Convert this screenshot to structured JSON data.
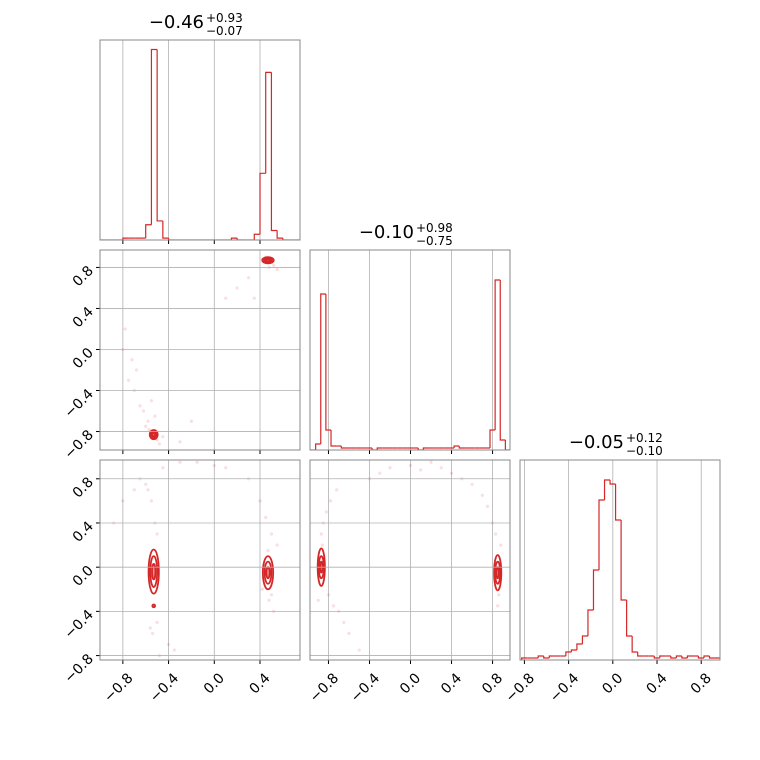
{
  "chart_data": {
    "type": "corner",
    "color": "#d62728",
    "grid": true,
    "params": [
      {
        "title": {
          "value": -0.46,
          "label": "−0.46"
        },
        "err_plus": {
          "value": 0.93,
          "label": "+0.93"
        },
        "err_minus": {
          "value": 0.07,
          "label": "−0.07"
        },
        "lim": [
          -1.0,
          0.75
        ],
        "ticks": [
          {
            "value": -0.8,
            "label": "−0.8"
          },
          {
            "value": -0.4,
            "label": "−0.4"
          },
          {
            "value": 0,
            "label": "0.0"
          },
          0.4
        ],
        "bins": [
          -1.0,
          -0.95,
          -0.9,
          -0.85,
          -0.8,
          -0.75,
          -0.7,
          -0.65,
          -0.6,
          -0.55,
          -0.5,
          -0.45,
          -0.4,
          -0.35,
          -0.3,
          -0.25,
          -0.2,
          -0.15,
          -0.1,
          -0.05,
          0,
          0.05,
          0.1,
          0.15,
          0.2,
          0.25,
          0.3,
          0.35,
          0.4,
          0.45,
          0.5,
          0.55,
          0.6,
          0.65,
          0.7,
          0.75
        ],
        "counts": [
          0,
          0,
          0,
          0,
          1,
          1,
          1,
          1,
          8,
          100,
          10,
          1,
          0,
          0,
          0,
          0,
          0,
          0,
          0,
          0,
          0,
          0,
          0,
          1,
          0,
          0,
          0,
          3,
          35,
          88,
          5,
          1,
          0,
          0,
          0
        ],
        "hist_ylim": [
          0,
          105
        ]
      },
      {
        "title": {
          "value": -0.1,
          "label": "−0.10"
        },
        "err_plus": {
          "value": 0.98,
          "label": "+0.98"
        },
        "err_minus": {
          "value": 0.75,
          "label": "−0.75"
        },
        "lim": [
          -0.98,
          0.97
        ],
        "ticks": [
          {
            "value": -0.8,
            "label": "−0.8"
          },
          {
            "value": -0.4,
            "label": "−0.4"
          },
          {
            "value": 0,
            "label": "0.0"
          },
          0.4,
          0.8
        ],
        "bins": [
          -0.975,
          -0.925,
          -0.875,
          -0.825,
          -0.775,
          -0.725,
          -0.675,
          -0.625,
          -0.575,
          -0.525,
          -0.475,
          -0.425,
          -0.375,
          -0.325,
          -0.275,
          -0.225,
          -0.175,
          -0.125,
          -0.075,
          -0.025,
          0.025,
          0.075,
          0.125,
          0.175,
          0.225,
          0.275,
          0.325,
          0.375,
          0.425,
          0.475,
          0.525,
          0.575,
          0.625,
          0.675,
          0.725,
          0.775,
          0.825,
          0.875,
          0.925,
          0.975
        ],
        "counts": [
          0,
          3,
          78,
          10,
          2,
          2,
          1,
          1,
          1,
          1,
          1,
          1,
          0,
          1,
          1,
          1,
          1,
          1,
          1,
          1,
          1,
          0,
          1,
          1,
          1,
          1,
          1,
          1,
          2,
          1,
          1,
          1,
          1,
          1,
          1,
          10,
          85,
          5,
          0
        ],
        "hist_ylim": [
          0,
          100
        ]
      },
      {
        "title": {
          "value": -0.05,
          "label": "−0.05"
        },
        "err_plus": {
          "value": 0.12,
          "label": "+0.12"
        },
        "err_minus": {
          "value": 0.1,
          "label": "−0.10"
        },
        "lim": [
          -0.84,
          0.97
        ],
        "ticks": [
          {
            "value": -0.8,
            "label": "−0.8"
          },
          {
            "value": -0.4,
            "label": "−0.4"
          },
          {
            "value": 0,
            "label": "0.0"
          },
          0.4,
          0.8
        ],
        "bins": [
          -0.825,
          -0.775,
          -0.725,
          -0.675,
          -0.625,
          -0.575,
          -0.525,
          -0.475,
          -0.425,
          -0.375,
          -0.325,
          -0.275,
          -0.225,
          -0.175,
          -0.125,
          -0.075,
          -0.025,
          0.025,
          0.075,
          0.125,
          0.175,
          0.225,
          0.275,
          0.325,
          0.375,
          0.425,
          0.475,
          0.525,
          0.575,
          0.625,
          0.675,
          0.725,
          0.775,
          0.825,
          0.875,
          0.925,
          0.975
        ],
        "counts": [
          1,
          1,
          1,
          2,
          1,
          2,
          2,
          2,
          4,
          5,
          8,
          12,
          25,
          45,
          80,
          90,
          88,
          70,
          30,
          12,
          4,
          2,
          2,
          2,
          1,
          2,
          2,
          1,
          2,
          1,
          2,
          2,
          1,
          2,
          1,
          1
        ],
        "hist_ylim": [
          0,
          100
        ]
      }
    ],
    "pairs": [
      {
        "xparam": 1,
        "yparam": 0,
        "swap": true,
        "points": {
          "x": [
            -0.53,
            -0.55,
            -0.5,
            -0.6,
            -0.58,
            -0.52,
            -0.62,
            -0.65,
            -0.7,
            -0.75,
            -0.72,
            -0.8,
            -0.78,
            -0.68,
            -0.55,
            -0.45,
            -0.3,
            -0.2,
            0.1,
            0.2,
            0.3,
            0.35,
            0.45,
            0.5,
            0.48,
            0.52,
            0.55,
            0.42,
            -0.48,
            -0.57
          ],
          "y": [
            -0.85,
            -0.8,
            -0.88,
            -0.75,
            -0.7,
            -0.65,
            -0.6,
            -0.55,
            -0.4,
            -0.3,
            -0.1,
            0.0,
            0.2,
            -0.2,
            -0.5,
            -0.85,
            -0.9,
            -0.7,
            0.5,
            0.6,
            0.7,
            0.5,
            0.9,
            0.85,
            0.8,
            0.82,
            0.78,
            0.88,
            -0.92,
            -0.78
          ]
        },
        "contours": [
          {
            "x": 0.47,
            "y": 0.87,
            "rx": [
              0.05,
              0.035,
              0.02
            ],
            "ry": [
              0.03,
              0.02,
              0.01
            ]
          },
          {
            "x": -0.53,
            "y": -0.83,
            "rx": [
              0.035,
              0.025,
              0.012
            ],
            "ry": [
              0.045,
              0.03,
              0.015
            ]
          }
        ]
      },
      {
        "xparam": 0,
        "yparam": 2,
        "points": {
          "x": [
            -0.55,
            -0.52,
            -0.5,
            -0.58,
            -0.6,
            -0.65,
            -0.7,
            -0.8,
            -0.88,
            -0.45,
            -0.3,
            -0.15,
            0.0,
            0.1,
            0.3,
            0.4,
            0.45,
            0.5,
            0.55,
            0.48,
            0.42,
            0.52,
            -0.5,
            -0.56,
            -0.54,
            -0.4,
            -0.35,
            -0.48,
            0.47,
            0.5
          ],
          "y": [
            0.6,
            0.4,
            0.3,
            0.7,
            0.75,
            0.8,
            0.7,
            0.6,
            0.4,
            0.9,
            0.95,
            0.95,
            0.92,
            0.9,
            0.8,
            0.6,
            0.45,
            0.3,
            0.2,
            -0.3,
            -0.2,
            -0.4,
            -0.5,
            -0.55,
            -0.6,
            -0.7,
            -0.75,
            -0.8,
            0.15,
            -0.25
          ]
        },
        "contours": [
          {
            "x": -0.53,
            "y": -0.04,
            "rx": [
              0.045,
              0.03,
              0.015
            ],
            "ry": [
              0.2,
              0.14,
              0.07
            ]
          },
          {
            "x": 0.47,
            "y": -0.05,
            "rx": [
              0.045,
              0.03,
              0.015
            ],
            "ry": [
              0.15,
              0.1,
              0.05
            ]
          },
          {
            "x": -0.53,
            "y": -0.35,
            "rx": [
              0.012
            ],
            "ry": [
              0.012
            ]
          }
        ]
      },
      {
        "xparam": 1,
        "yparam": 2,
        "points": {
          "x": [
            -0.87,
            -0.85,
            -0.82,
            -0.8,
            -0.75,
            -0.7,
            -0.65,
            -0.6,
            -0.5,
            -0.4,
            -0.3,
            -0.2,
            0.0,
            0.1,
            0.2,
            0.3,
            0.4,
            0.5,
            0.6,
            0.7,
            0.75,
            0.8,
            0.83,
            0.86,
            0.85,
            -0.86,
            -0.78,
            -0.72,
            -0.9,
            0.88
          ],
          "y": [
            0.3,
            0.4,
            0.5,
            -0.25,
            -0.35,
            -0.4,
            -0.5,
            -0.6,
            -0.75,
            0.8,
            0.85,
            0.9,
            0.92,
            0.88,
            0.95,
            0.9,
            0.85,
            0.8,
            0.75,
            0.65,
            0.55,
            0.4,
            0.3,
            -0.25,
            -0.35,
            0.2,
            0.6,
            0.7,
            -0.3,
            0.2
          ]
        },
        "contours": [
          {
            "x": -0.87,
            "y": 0.0,
            "rx": [
              0.035,
              0.025,
              0.012
            ],
            "ry": [
              0.17,
              0.1,
              0.05
            ]
          },
          {
            "x": 0.85,
            "y": -0.05,
            "rx": [
              0.035,
              0.025,
              0.012
            ],
            "ry": [
              0.16,
              0.1,
              0.05
            ]
          }
        ]
      }
    ]
  }
}
